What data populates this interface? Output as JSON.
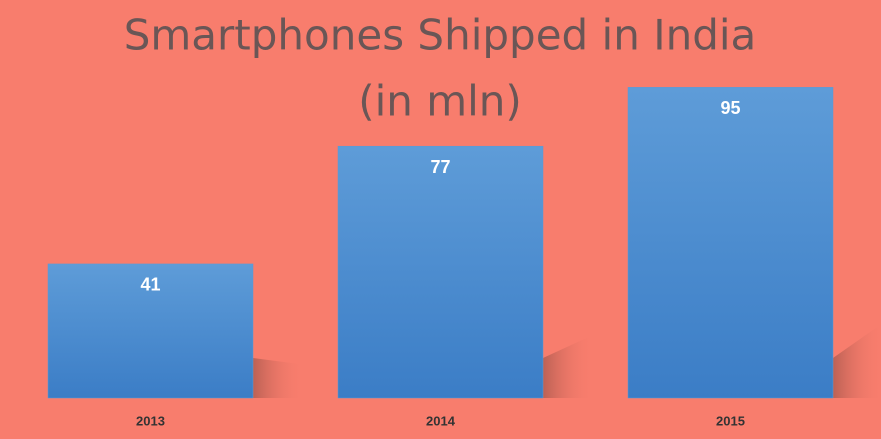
{
  "chart_data": {
    "type": "bar",
    "title": "Smartphones Shipped in India",
    "subtitle": "(in mln)",
    "categories": [
      "2013",
      "2014",
      "2015"
    ],
    "values": [
      41,
      77,
      95
    ],
    "color": "#5b9bd5"
  }
}
